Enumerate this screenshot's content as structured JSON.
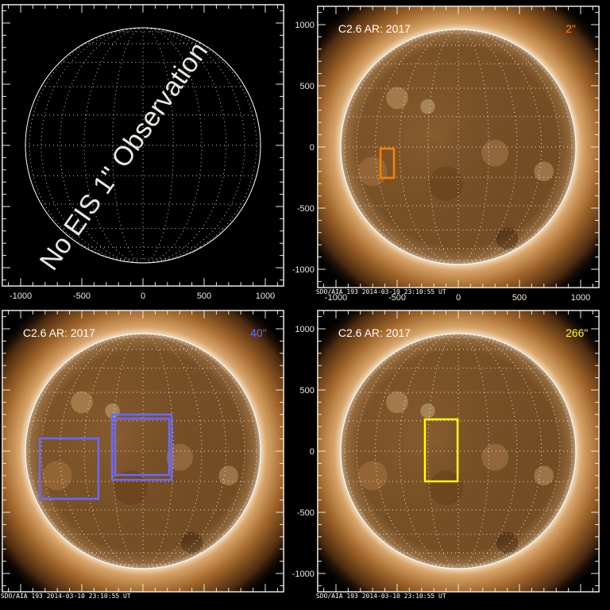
{
  "panels": [
    {
      "id": "top-left",
      "title": "",
      "resolution": "",
      "color": "#ff7f00",
      "has_image": false,
      "overlay": "No EIS 1\" Observation",
      "footer": "",
      "boxes": []
    },
    {
      "id": "top-right",
      "title": "C2.6 AR: 2017",
      "resolution": "2\"",
      "color": "#ff7f00",
      "has_image": true,
      "overlay": "",
      "footer": "SDO/AIA 193   2014-03-10 23:10:55 UT",
      "boxes": [
        {
          "x": [
            -636,
            -526
          ],
          "y": [
            -253,
            -13
          ]
        }
      ]
    },
    {
      "id": "bottom-left",
      "title": "C2.6 AR: 2017",
      "resolution": "40\"",
      "color": "#6a6aff",
      "has_image": true,
      "overlay": "",
      "footer": "SDO/AIA 193   2014-03-10 23:10:55 UT",
      "boxes": [
        {
          "x": [
            -844,
            -364
          ],
          "y": [
            -390,
            104
          ]
        },
        {
          "x": [
            -253,
            234
          ],
          "y": [
            -234,
            299
          ]
        },
        {
          "x": [
            -227,
            214
          ],
          "y": [
            -195,
            266
          ]
        }
      ]
    },
    {
      "id": "bottom-right",
      "title": "C2.6 AR: 2017",
      "resolution": "266\"",
      "color": "#ffff00",
      "has_image": true,
      "overlay": "",
      "footer": "SDO/AIA 193   2014-03-10 23:10:55 UT",
      "boxes": [
        {
          "x": [
            -273,
            -6
          ],
          "y": [
            -247,
            260
          ]
        }
      ]
    }
  ],
  "axes": {
    "x_ticks": [
      "-1000",
      "-500",
      "0",
      "500",
      "1000"
    ],
    "y_ticks": [
      "1000",
      "500",
      "0",
      "-500",
      "-1000"
    ],
    "range": [
      -1150,
      1150
    ],
    "units": "arcsec"
  },
  "colors": {
    "axis": "#eee8dc",
    "grid": "#ffffff",
    "corona": "#b87a3a",
    "disk": "#7a4f22"
  }
}
